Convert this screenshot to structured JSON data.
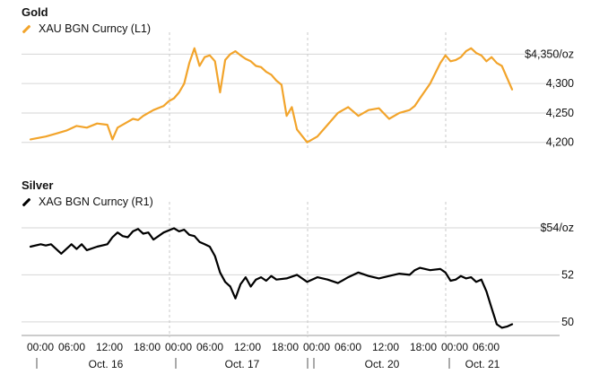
{
  "chart_data": [
    {
      "type": "line",
      "title": "Gold",
      "series": [
        {
          "name": "XAU BGN Curncy (L1)",
          "color": "#f2a42b"
        }
      ],
      "yticks": [
        {
          "value": 4350,
          "label": "$4,350/oz"
        },
        {
          "value": 4300,
          "label": "4,300"
        },
        {
          "value": 4250,
          "label": "4,250"
        },
        {
          "value": 4200,
          "label": "4,200"
        }
      ],
      "ylim": [
        4195,
        4375
      ],
      "x": [
        0,
        3,
        5,
        7,
        9,
        11,
        13,
        15,
        16,
        17,
        18,
        19,
        20,
        21,
        22,
        24,
        26,
        27,
        28,
        29,
        30,
        31,
        32,
        33,
        34,
        35,
        36,
        37,
        38,
        39,
        40,
        41,
        42,
        43,
        44,
        45,
        46,
        47,
        48,
        49,
        50,
        51,
        52,
        54,
        56,
        58,
        60,
        62,
        64,
        66,
        68,
        70,
        72,
        74,
        75,
        76,
        78,
        80,
        81,
        82,
        83,
        84,
        85,
        86,
        87,
        88,
        89,
        90,
        91,
        92,
        94
      ],
      "values": [
        4205,
        4210,
        4215,
        4220,
        4228,
        4225,
        4232,
        4230,
        4205,
        4225,
        4230,
        4235,
        4240,
        4238,
        4245,
        4255,
        4262,
        4270,
        4275,
        4285,
        4300,
        4335,
        4360,
        4330,
        4345,
        4348,
        4338,
        4285,
        4340,
        4350,
        4355,
        4348,
        4342,
        4338,
        4330,
        4328,
        4320,
        4315,
        4305,
        4298,
        4245,
        4260,
        4222,
        4200,
        4210,
        4230,
        4250,
        4260,
        4245,
        4255,
        4258,
        4240,
        4250,
        4255,
        4262,
        4275,
        4300,
        4335,
        4348,
        4338,
        4340,
        4345,
        4355,
        4360,
        4352,
        4348,
        4338,
        4345,
        4335,
        4330,
        4290
      ]
    },
    {
      "type": "line",
      "title": "Silver",
      "series": [
        {
          "name": "XAG BGN Curncy (R1)",
          "color": "#000000"
        }
      ],
      "yticks": [
        {
          "value": 54,
          "label": "$54/oz"
        },
        {
          "value": 52,
          "label": "52"
        },
        {
          "value": 50,
          "label": "50"
        }
      ],
      "ylim": [
        49.5,
        54.8
      ],
      "x": [
        0,
        2,
        3,
        4,
        6,
        8,
        9,
        10,
        11,
        13,
        15,
        16,
        17,
        18,
        19,
        20,
        21,
        22,
        23,
        24,
        25,
        26,
        28,
        29,
        30,
        31,
        32,
        33,
        34,
        35,
        36,
        37,
        38,
        39,
        40,
        41,
        42,
        43,
        44,
        45,
        46,
        47,
        48,
        50,
        52,
        54,
        56,
        58,
        60,
        62,
        64,
        66,
        68,
        70,
        72,
        74,
        75,
        76,
        78,
        80,
        81,
        82,
        83,
        84,
        85,
        86,
        87,
        88,
        89,
        90,
        91,
        92,
        93,
        94
      ],
      "values": [
        53.2,
        53.3,
        53.25,
        53.3,
        52.9,
        53.3,
        53.1,
        53.3,
        53.05,
        53.2,
        53.3,
        53.6,
        53.8,
        53.65,
        53.6,
        53.85,
        53.95,
        53.75,
        53.8,
        53.5,
        53.65,
        53.8,
        53.98,
        53.85,
        53.92,
        53.7,
        53.65,
        53.4,
        53.3,
        53.2,
        52.8,
        52.1,
        51.7,
        51.5,
        51.0,
        51.6,
        51.9,
        51.5,
        51.8,
        51.9,
        51.75,
        51.95,
        51.8,
        51.85,
        52.0,
        51.7,
        51.9,
        51.8,
        51.65,
        51.9,
        52.1,
        51.95,
        51.85,
        51.95,
        52.05,
        52.0,
        52.2,
        52.3,
        52.2,
        52.25,
        52.1,
        51.75,
        51.8,
        51.95,
        51.85,
        51.9,
        51.7,
        51.8,
        51.3,
        50.6,
        49.9,
        49.75,
        49.8,
        49.9
      ]
    }
  ],
  "x_axis": {
    "time_labels": [
      "00:00",
      "06:00",
      "12:00",
      "18:00",
      "00:00",
      "06:00",
      "12:00",
      "18:00",
      "00:00",
      "06:00",
      "12:00",
      "18:00",
      "00:00",
      "06:00"
    ],
    "date_labels": [
      "Oct. 16",
      "Oct. 17",
      "Oct. 20",
      "Oct. 21"
    ]
  }
}
